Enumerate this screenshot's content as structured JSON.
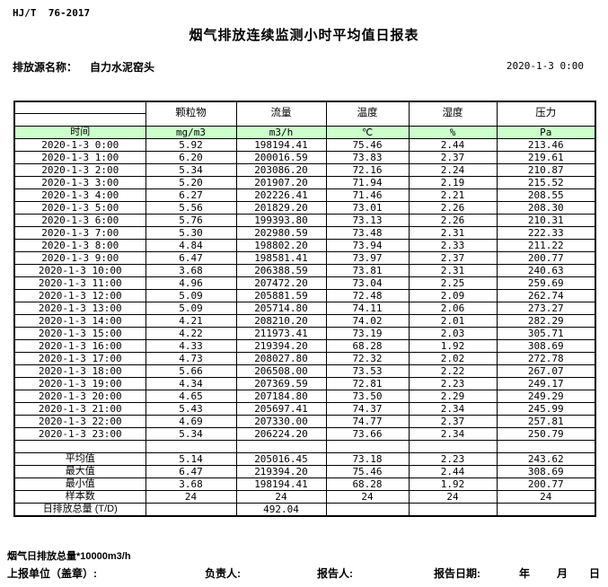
{
  "header": {
    "standard": "HJ/T  76-2017",
    "title": "烟气排放连续监测小时平均值日报表",
    "source_label": "排放源名称：",
    "source_name": "自力水泥窑头",
    "datetime": "2020-1-3 0:00"
  },
  "table": {
    "time_header": "时间",
    "columns": [
      {
        "name": "颗粒物",
        "unit": "mg/m3"
      },
      {
        "name": "流量",
        "unit": "m3/h"
      },
      {
        "name": "温度",
        "unit": "℃"
      },
      {
        "name": "湿度",
        "unit": "%"
      },
      {
        "name": "压力",
        "unit": "Pa"
      }
    ],
    "rows": [
      [
        "2020-1-3 0:00",
        "5.92",
        "198194.41",
        "75.46",
        "2.44",
        "213.46"
      ],
      [
        "2020-1-3 1:00",
        "6.20",
        "200016.59",
        "73.83",
        "2.37",
        "219.61"
      ],
      [
        "2020-1-3 2:00",
        "5.34",
        "203086.20",
        "72.16",
        "2.24",
        "210.87"
      ],
      [
        "2020-1-3 3:00",
        "5.20",
        "201907.20",
        "71.94",
        "2.19",
        "215.52"
      ],
      [
        "2020-1-3 4:00",
        "6.27",
        "202226.41",
        "71.46",
        "2.21",
        "208.55"
      ],
      [
        "2020-1-3 5:00",
        "5.56",
        "201829.20",
        "73.01",
        "2.26",
        "208.30"
      ],
      [
        "2020-1-3 6:00",
        "5.76",
        "199393.80",
        "73.13",
        "2.26",
        "210.31"
      ],
      [
        "2020-1-3 7:00",
        "5.30",
        "202980.59",
        "73.48",
        "2.31",
        "222.33"
      ],
      [
        "2020-1-3 8:00",
        "4.84",
        "198802.20",
        "73.94",
        "2.33",
        "211.22"
      ],
      [
        "2020-1-3 9:00",
        "6.47",
        "198581.41",
        "73.97",
        "2.37",
        "200.77"
      ],
      [
        "2020-1-3 10:00",
        "3.68",
        "206388.59",
        "73.81",
        "2.31",
        "240.63"
      ],
      [
        "2020-1-3 11:00",
        "4.96",
        "207472.20",
        "73.04",
        "2.25",
        "259.69"
      ],
      [
        "2020-1-3 12:00",
        "5.09",
        "205881.59",
        "72.48",
        "2.09",
        "262.74"
      ],
      [
        "2020-1-3 13:00",
        "5.09",
        "205714.80",
        "74.11",
        "2.06",
        "273.27"
      ],
      [
        "2020-1-3 14:00",
        "4.21",
        "208210.20",
        "74.02",
        "2.01",
        "282.29"
      ],
      [
        "2020-1-3 15:00",
        "4.22",
        "211973.41",
        "73.19",
        "2.03",
        "305.71"
      ],
      [
        "2020-1-3 16:00",
        "4.33",
        "219394.20",
        "68.28",
        "1.92",
        "308.69"
      ],
      [
        "2020-1-3 17:00",
        "4.73",
        "208027.80",
        "72.32",
        "2.02",
        "272.78"
      ],
      [
        "2020-1-3 18:00",
        "5.66",
        "206508.00",
        "73.53",
        "2.22",
        "267.07"
      ],
      [
        "2020-1-3 19:00",
        "4.34",
        "207369.59",
        "72.81",
        "2.23",
        "249.17"
      ],
      [
        "2020-1-3 20:00",
        "4.65",
        "207184.80",
        "73.50",
        "2.29",
        "249.29"
      ],
      [
        "2020-1-3 21:00",
        "5.43",
        "205697.41",
        "74.37",
        "2.34",
        "245.99"
      ],
      [
        "2020-1-3 22:00",
        "4.69",
        "207330.00",
        "74.77",
        "2.37",
        "257.81"
      ],
      [
        "2020-1-3 23:00",
        "5.34",
        "206224.20",
        "73.66",
        "2.34",
        "250.79"
      ]
    ],
    "summary": [
      {
        "label": "平均值",
        "values": [
          "5.14",
          "205016.45",
          "73.18",
          "2.23",
          "243.62"
        ]
      },
      {
        "label": "最大值",
        "values": [
          "6.47",
          "219394.20",
          "75.46",
          "2.44",
          "308.69"
        ]
      },
      {
        "label": "最小值",
        "values": [
          "3.68",
          "198194.41",
          "68.28",
          "1.92",
          "200.77"
        ]
      },
      {
        "label": "样本数",
        "values": [
          "24",
          "24",
          "24",
          "24",
          "24"
        ]
      },
      {
        "label": "日排放总量 (T/D)",
        "values": [
          "",
          "492.04",
          "",
          "",
          ""
        ]
      }
    ]
  },
  "footer": {
    "note": "烟气日排放总量*10000m3/h",
    "unit_label": "上报单位（盖章）:",
    "responsible_label": "负责人:",
    "reporter_label": "报告人:",
    "report_date_label": "报告日期:",
    "year_label": "年",
    "month_label": "月",
    "day_label": "日"
  },
  "colors": {
    "header_green": "#CCFFCC",
    "border": "#000000"
  }
}
